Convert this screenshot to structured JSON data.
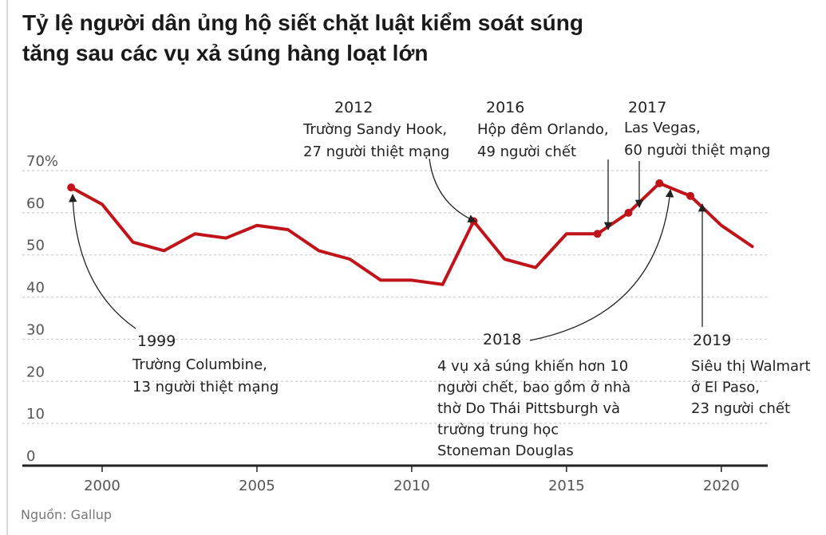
{
  "title_line1": "Tỷ lệ người dân ủng hộ siết chặt luật kiểm soát súng",
  "title_line2": "tăng sau các vụ xả súng hàng loạt lớn",
  "source": "Nguồn: Gallup",
  "colors": {
    "line": "#c0141a",
    "grid": "#cfcfcf",
    "axis": "#222222",
    "annotation": "#222222"
  },
  "chart_data": {
    "type": "line",
    "title": "Tỷ lệ người dân ủng hộ siết chặt luật kiểm soát súng tăng sau các vụ xả súng hàng loạt lớn",
    "xlabel": "",
    "ylabel": "",
    "xlim": [
      1997.5,
      2021.5
    ],
    "ylim": [
      0,
      70
    ],
    "y_ticks": [
      0,
      10,
      20,
      30,
      40,
      50,
      60,
      70
    ],
    "y_tick_labels": [
      "0",
      "10",
      "20",
      "30",
      "40",
      "50",
      "60",
      "70%"
    ],
    "x_ticks": [
      2000,
      2005,
      2010,
      2015,
      2020
    ],
    "x_tick_labels": [
      "2000",
      "2005",
      "2010",
      "2015",
      "2020"
    ],
    "grid": true,
    "series": [
      {
        "name": "Ủng hộ siết chặt luật kiểm soát súng",
        "x": [
          1999,
          2000,
          2001,
          2002,
          2003,
          2004,
          2005,
          2006,
          2007,
          2008,
          2009,
          2010,
          2011,
          2012,
          2013,
          2014,
          2015,
          2016,
          2017,
          2018,
          2019,
          2020,
          2021
        ],
        "values": [
          66,
          62,
          53,
          51,
          55,
          54,
          57,
          56,
          51,
          49,
          44,
          44,
          43,
          58,
          49,
          47,
          55,
          55,
          60,
          67,
          64,
          57,
          52
        ]
      }
    ],
    "highlight_points": [
      1999,
      2012,
      2016,
      2017,
      2018,
      2019
    ],
    "annotations": [
      {
        "year_label": "1999",
        "lines": [
          "Trường Columbine,",
          "13 người thiệt mạng"
        ],
        "x": 1999
      },
      {
        "year_label": "2012",
        "lines": [
          "Trường Sandy Hook,",
          "27 người thiệt mạng"
        ],
        "x": 2012
      },
      {
        "year_label": "2016",
        "lines": [
          "Hộp đêm Orlando,",
          "49 người chết"
        ],
        "x": 2016
      },
      {
        "year_label": "2017",
        "lines": [
          "Las Vegas,",
          "60 người thiệt mạng"
        ],
        "x": 2017
      },
      {
        "year_label": "2018",
        "lines": [
          "4 vụ xả súng khiến hơn 10",
          "người chết, bao gồm ở nhà",
          "thờ Do Thái Pittsburgh và",
          "trường trung học",
          "Stoneman Douglas"
        ],
        "x": 2018
      },
      {
        "year_label": "2019",
        "lines": [
          "Siêu thị Walmart",
          "ở El Paso,",
          "23 người chết"
        ],
        "x": 2019
      }
    ]
  }
}
